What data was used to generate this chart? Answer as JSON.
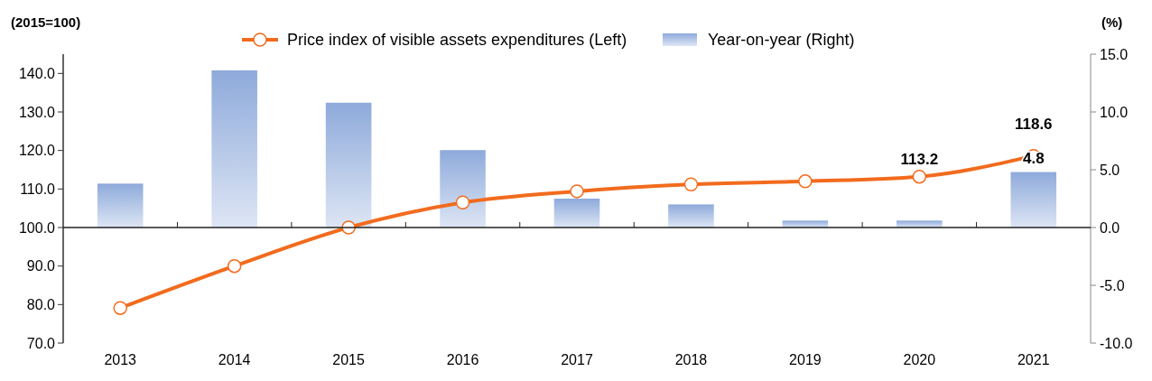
{
  "chart_data": {
    "type": "bar",
    "ylabel": "(2015=100)",
    "y2label": "(%)",
    "categories": [
      "2013",
      "2014",
      "2015",
      "2016",
      "2017",
      "2018",
      "2019",
      "2020",
      "2021"
    ],
    "series": [
      {
        "name": "Price index of visible assets expenditures (Left)",
        "type": "line",
        "color": "#f26b1d",
        "marker": "circle",
        "values": [
          79.1,
          90.0,
          100.0,
          106.5,
          109.4,
          111.2,
          112.0,
          113.2,
          118.6
        ],
        "value_labels": [
          null,
          null,
          null,
          null,
          null,
          null,
          null,
          "113.2",
          "118.6"
        ]
      },
      {
        "name": "Year-on-year (Right)",
        "axis": "y2",
        "color": "#8eaadb",
        "values": [
          3.8,
          13.6,
          10.8,
          6.7,
          2.5,
          2.0,
          0.6,
          0.6,
          4.8
        ],
        "value_labels": [
          null,
          null,
          null,
          null,
          null,
          null,
          null,
          null,
          "4.8"
        ]
      }
    ],
    "ylim": [
      70,
      145
    ],
    "yticks": [
      {
        "value": 70,
        "label": "70.0"
      },
      {
        "value": 80,
        "label": "80.0"
      },
      {
        "value": 90,
        "label": "90.0"
      },
      {
        "value": 100,
        "label": "100.0"
      },
      {
        "value": 110,
        "label": "110.0"
      },
      {
        "value": 120,
        "label": "120.0"
      },
      {
        "value": 130,
        "label": "130.0"
      },
      {
        "value": 140,
        "label": "140.0"
      }
    ],
    "y2lim": [
      -10,
      15
    ],
    "y2ticks": [
      {
        "value": -10,
        "label": "-10.0"
      },
      {
        "value": -5,
        "label": "-5.0"
      },
      {
        "value": 0,
        "label": "0.0"
      },
      {
        "value": 5,
        "label": "5.0"
      },
      {
        "value": 10,
        "label": "10.0"
      },
      {
        "value": 15,
        "label": "15.0"
      }
    ],
    "legend": "top"
  }
}
